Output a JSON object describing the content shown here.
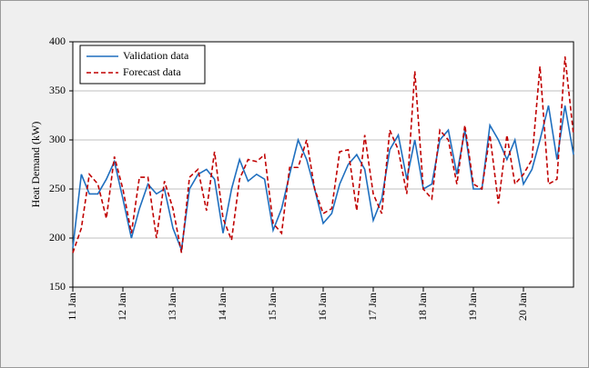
{
  "chart_data": {
    "type": "line",
    "ylabel": "Heat Demand (kW)",
    "x": [
      0,
      0.17,
      0.33,
      0.5,
      0.67,
      0.83,
      1,
      1.17,
      1.33,
      1.5,
      1.67,
      1.83,
      2,
      2.17,
      2.33,
      2.5,
      2.67,
      2.83,
      3,
      3.17,
      3.33,
      3.5,
      3.67,
      3.83,
      4,
      4.17,
      4.33,
      4.5,
      4.67,
      4.83,
      5,
      5.17,
      5.33,
      5.5,
      5.67,
      5.83,
      6,
      6.17,
      6.33,
      6.5,
      6.67,
      6.83,
      7,
      7.17,
      7.33,
      7.5,
      7.67,
      7.83,
      8,
      8.17,
      8.33,
      8.5,
      8.67,
      8.83,
      9,
      9.17,
      9.33,
      9.5,
      9.67,
      9.83,
      10
    ],
    "series": [
      {
        "name": "Validation data",
        "color": "#1f6fbf",
        "dash": false,
        "values": [
          190,
          265,
          245,
          245,
          260,
          278,
          240,
          200,
          230,
          255,
          245,
          250,
          210,
          188,
          250,
          265,
          270,
          260,
          205,
          250,
          280,
          258,
          265,
          260,
          208,
          230,
          265,
          300,
          280,
          250,
          215,
          225,
          255,
          275,
          285,
          270,
          218,
          240,
          290,
          305,
          260,
          300,
          250,
          255,
          300,
          310,
          265,
          310,
          250,
          250,
          315,
          300,
          280,
          300,
          255,
          270,
          300,
          335,
          280,
          335,
          285
        ]
      },
      {
        "name": "Forecast data",
        "color": "#c00000",
        "dash": true,
        "values": [
          185,
          210,
          265,
          255,
          220,
          283,
          250,
          205,
          262,
          262,
          200,
          258,
          230,
          185,
          262,
          270,
          228,
          288,
          220,
          198,
          260,
          280,
          278,
          285,
          215,
          205,
          272,
          272,
          300,
          250,
          225,
          230,
          288,
          290,
          228,
          305,
          245,
          225,
          310,
          290,
          245,
          370,
          250,
          240,
          310,
          300,
          255,
          315,
          255,
          250,
          305,
          235,
          305,
          255,
          265,
          280,
          375,
          255,
          260,
          385,
          305
        ]
      }
    ],
    "xlim": [
      0,
      10
    ],
    "xticks": [
      {
        "value": 0,
        "label": "11 Jan"
      },
      {
        "value": 1,
        "label": "12 Jan"
      },
      {
        "value": 2,
        "label": "13 Jan"
      },
      {
        "value": 3,
        "label": "14 Jan"
      },
      {
        "value": 4,
        "label": "15 Jan"
      },
      {
        "value": 5,
        "label": "16 Jan"
      },
      {
        "value": 6,
        "label": "17 Jan"
      },
      {
        "value": 7,
        "label": "18 Jan"
      },
      {
        "value": 8,
        "label": "19 Jan"
      },
      {
        "value": 9,
        "label": "20 Jan"
      }
    ],
    "ylim": [
      150,
      400
    ],
    "yticks": [
      150,
      200,
      250,
      300,
      350,
      400
    ],
    "grid": true,
    "legend": "top-left"
  }
}
